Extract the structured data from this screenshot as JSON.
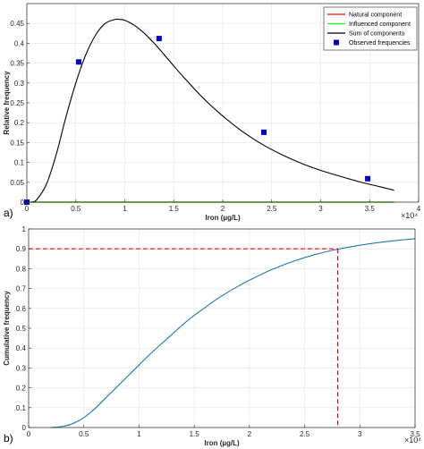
{
  "panel_labels": [
    "a)",
    "b)"
  ],
  "chart_data": [
    {
      "type": "line",
      "xlabel": "Iron (µg/L)",
      "ylabel": "Relative frequency",
      "x_exponent": "×10⁴",
      "xlim": [
        0,
        4
      ],
      "ylim": [
        0,
        0.5
      ],
      "xticks": [
        0,
        0.5,
        1,
        1.5,
        2,
        2.5,
        3,
        3.5,
        4
      ],
      "xtick_labels": [
        "0",
        "0.5",
        "1",
        "1.5",
        "2",
        "2.5",
        "3",
        "3.5",
        "4"
      ],
      "yticks": [
        0,
        0.05,
        0.1,
        0.15,
        0.2,
        0.25,
        0.3,
        0.35,
        0.4,
        0.45
      ],
      "ytick_labels": [
        "0",
        "0.05",
        "0.1",
        "0.15",
        "0.2",
        "0.25",
        "0.3",
        "0.35",
        "0.4",
        "0.45"
      ],
      "grid": true,
      "legend_position": "top-right",
      "series": [
        {
          "name": "Natural component",
          "color": "#ff0000",
          "x": [
            0,
            3.75
          ],
          "y": [
            0,
            0
          ]
        },
        {
          "name": "Influenced component",
          "color": "#00ff00",
          "x": [
            0,
            3.75
          ],
          "y": [
            0,
            0
          ]
        },
        {
          "name": "Sum of components",
          "color": "#000000",
          "x": [
            0.05,
            0.1,
            0.2,
            0.3,
            0.4,
            0.5,
            0.6,
            0.7,
            0.8,
            0.9,
            0.95,
            1.0,
            1.1,
            1.2,
            1.3,
            1.4,
            1.5,
            1.6,
            1.8,
            2.0,
            2.2,
            2.4,
            2.6,
            2.8,
            3.0,
            3.2,
            3.4,
            3.6,
            3.75
          ],
          "y": [
            0.001,
            0.006,
            0.045,
            0.12,
            0.215,
            0.3,
            0.37,
            0.42,
            0.45,
            0.46,
            0.46,
            0.458,
            0.445,
            0.425,
            0.4,
            0.372,
            0.343,
            0.315,
            0.262,
            0.217,
            0.178,
            0.146,
            0.12,
            0.098,
            0.08,
            0.065,
            0.051,
            0.039,
            0.03
          ]
        },
        {
          "name": "Observed frequencies",
          "color": "#0000cc",
          "marker": "square",
          "x": [
            0.0,
            0.53,
            1.35,
            2.42,
            3.48
          ],
          "y": [
            0.0,
            0.353,
            0.412,
            0.176,
            0.059
          ]
        }
      ]
    },
    {
      "type": "line",
      "xlabel": "Iron (µg/L)",
      "ylabel": "Cumulative frequency",
      "x_exponent": "×10⁴",
      "xlim": [
        0,
        3.5
      ],
      "ylim": [
        0,
        1
      ],
      "xticks": [
        0,
        0.5,
        1,
        1.5,
        2,
        2.5,
        3,
        3.5
      ],
      "xtick_labels": [
        "0",
        "0.5",
        "1",
        "1.5",
        "2",
        "2.5",
        "3",
        "3.5"
      ],
      "yticks": [
        0,
        0.1,
        0.2,
        0.3,
        0.4,
        0.5,
        0.6,
        0.7,
        0.8,
        0.9,
        1
      ],
      "ytick_labels": [
        "0",
        "0.1",
        "0.2",
        "0.3",
        "0.4",
        "0.5",
        "0.6",
        "0.7",
        "0.8",
        "0.9",
        "1"
      ],
      "grid": true,
      "series": [
        {
          "color": "#1f77b4",
          "x": [
            0.2,
            0.3,
            0.4,
            0.5,
            0.6,
            0.7,
            0.8,
            0.9,
            1.0,
            1.1,
            1.2,
            1.3,
            1.4,
            1.5,
            1.6,
            1.7,
            1.8,
            1.9,
            2.0,
            2.2,
            2.4,
            2.6,
            2.8,
            3.0,
            3.2,
            3.4,
            3.5
          ],
          "y": [
            0.0,
            0.005,
            0.02,
            0.05,
            0.095,
            0.15,
            0.205,
            0.26,
            0.315,
            0.37,
            0.42,
            0.47,
            0.52,
            0.565,
            0.605,
            0.645,
            0.68,
            0.712,
            0.742,
            0.795,
            0.838,
            0.872,
            0.898,
            0.918,
            0.934,
            0.946,
            0.951
          ]
        }
      ],
      "reference": {
        "color": "#ff0000",
        "style": "dashed",
        "x": 2.8,
        "y": 0.9
      }
    }
  ]
}
